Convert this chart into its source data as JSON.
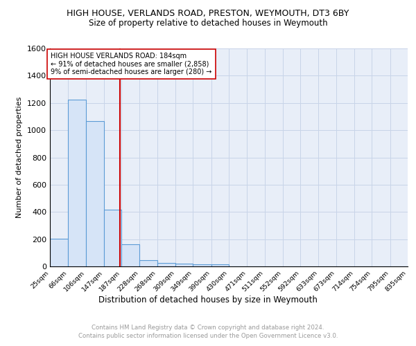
{
  "title1": "HIGH HOUSE, VERLANDS ROAD, PRESTON, WEYMOUTH, DT3 6BY",
  "title2": "Size of property relative to detached houses in Weymouth",
  "xlabel": "Distribution of detached houses by size in Weymouth",
  "ylabel": "Number of detached properties",
  "bin_edges": [
    25,
    66,
    106,
    147,
    187,
    228,
    268,
    309,
    349,
    390,
    430,
    471,
    511,
    552,
    592,
    633,
    673,
    714,
    754,
    795,
    835
  ],
  "bin_heights": [
    205,
    1225,
    1065,
    415,
    165,
    48,
    27,
    20,
    15,
    17,
    0,
    0,
    0,
    0,
    0,
    0,
    0,
    0,
    0,
    0
  ],
  "bar_facecolor": "#d6e4f7",
  "bar_edgecolor": "#5b9bd5",
  "vline_x": 184,
  "vline_color": "#cc0000",
  "annotation_text": "HIGH HOUSE VERLANDS ROAD: 184sqm\n← 91% of detached houses are smaller (2,858)\n9% of semi-detached houses are larger (280) →",
  "annotation_box_edgecolor": "#cc0000",
  "ylim": [
    0,
    1600
  ],
  "yticks": [
    0,
    200,
    400,
    600,
    800,
    1000,
    1200,
    1400,
    1600
  ],
  "grid_color": "#c8d4e8",
  "bg_color": "#e8eef8",
  "footer_line1": "Contains HM Land Registry data © Crown copyright and database right 2024.",
  "footer_line2": "Contains public sector information licensed under the Open Government Licence v3.0."
}
